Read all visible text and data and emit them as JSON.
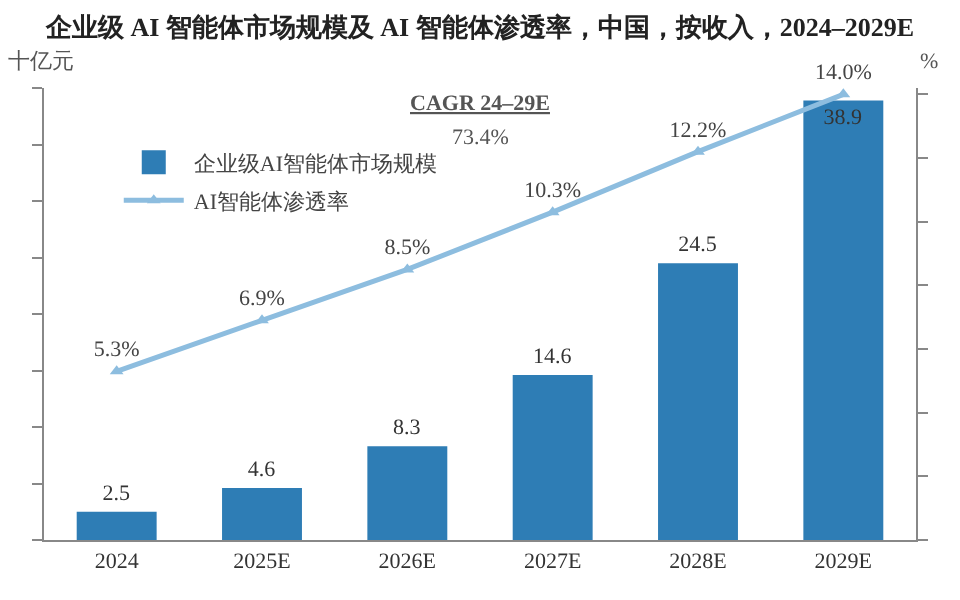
{
  "chart_data": {
    "type": "bar",
    "title": "企业级 AI 智能体市场规模及 AI 智能体渗透率，中国，按收入，2024–2029E",
    "ylabel": "十亿元",
    "y2label": "%",
    "categories": [
      "2024",
      "2025E",
      "2026E",
      "2027E",
      "2028E",
      "2029E"
    ],
    "series": [
      {
        "name": "企业级AI智能体市场规模",
        "color": "#2e7db5",
        "values": [
          2.5,
          4.6,
          8.3,
          14.6,
          24.5,
          38.9
        ]
      },
      {
        "name": "AI智能体渗透率",
        "type": "line",
        "axis": "y2",
        "color": "#8dbddf",
        "marker": "triangle",
        "values": [
          5.3,
          6.9,
          8.5,
          10.3,
          12.2,
          14.0
        ],
        "value_labels": [
          "5.3%",
          "6.9%",
          "8.5%",
          "10.3%",
          "12.2%",
          "14.0%"
        ]
      }
    ],
    "data_labels": true,
    "ylim": [
      0,
      40
    ],
    "yticks": [
      {
        "value": 0,
        "label": null
      },
      {
        "value": 5,
        "label": null
      },
      {
        "value": 10,
        "label": null
      },
      {
        "value": 15,
        "label": null
      },
      {
        "value": 20,
        "label": null
      },
      {
        "value": 25,
        "label": null
      },
      {
        "value": 30,
        "label": null
      },
      {
        "value": 35,
        "label": null
      },
      {
        "value": 40,
        "label": null
      }
    ],
    "y2lim": [
      0,
      14.2
    ],
    "y2ticks": [
      {
        "value": 0,
        "label": null
      },
      {
        "value": 2,
        "label": null
      },
      {
        "value": 4,
        "label": null
      },
      {
        "value": 6,
        "label": null
      },
      {
        "value": 8,
        "label": null
      },
      {
        "value": 10,
        "label": null
      },
      {
        "value": 12,
        "label": null
      },
      {
        "value": 14,
        "label": null
      }
    ],
    "tick_labels": "x",
    "legend": "top left",
    "grid": false,
    "annotations": [
      "CAGR 24–29E",
      "73.4%"
    ]
  }
}
